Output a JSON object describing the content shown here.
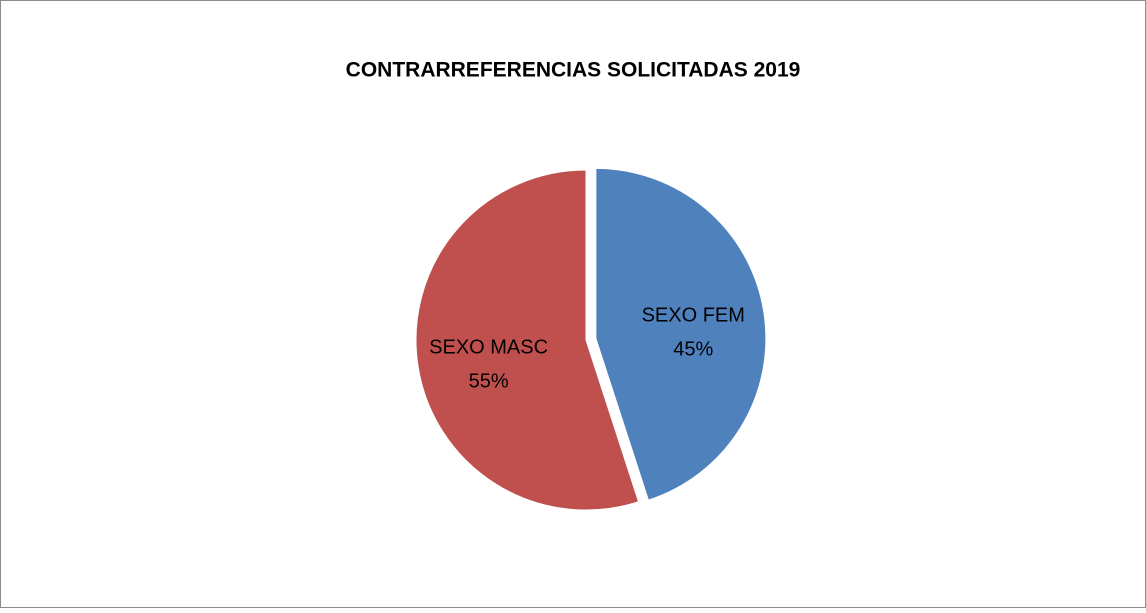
{
  "chart_data": {
    "type": "pie",
    "title": "CONTRARREFERENCIAS SOLICITADAS 2019",
    "categories": [
      "SEXO FEM",
      "SEXO MASC"
    ],
    "values": [
      45,
      55
    ],
    "value_labels": [
      "45%",
      "55%"
    ],
    "colors": [
      "#4f81bd",
      "#c0504d"
    ]
  }
}
